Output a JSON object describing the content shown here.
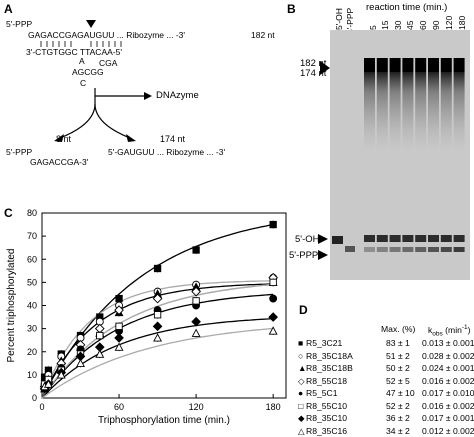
{
  "panels": {
    "A": "A",
    "B": "B",
    "C": "C",
    "D": "D"
  },
  "panelA": {
    "top_left_prefix": "5'-PPP",
    "top_strand": "GAGACCGAGAUGUU ... Ribozyme ... -3'",
    "top_length": "182 nt",
    "dz_strand": "3'-CTGTGGC  TTACAA-5'",
    "loop_a": "A",
    "loop_b": "CGA",
    "loop_c": "AGCGG",
    "loop_d": "C",
    "dnazyme": "DNAzyme",
    "frag1_len": "8 nt",
    "frag2_len": "174 nt",
    "frag1_a": "5'-PPP",
    "frag1_b": "GAGACCGA-3'",
    "frag2": "5'-GAUGUU ... Ribozyme ... -3'"
  },
  "panelB": {
    "lane_5oh": "5'-OH",
    "lane_5ppp": "5'-PPP",
    "reaction_time": "reaction time (min.)",
    "times": [
      "5",
      "15",
      "30",
      "45",
      "60",
      "90",
      "120",
      "180"
    ],
    "left_182": "182 nt",
    "left_174": "174 nt",
    "right_5oh": "5'-OH",
    "right_5ppp": "5'-PPP"
  },
  "chart_data": {
    "type": "scatter",
    "xlabel": "Triphosphorylation time (min.)",
    "ylabel": "Percent triphosphorylated",
    "xlim": [
      0,
      190
    ],
    "ylim": [
      0,
      80
    ],
    "xticks": [
      0,
      60,
      120,
      180
    ],
    "yticks": [
      0,
      10,
      20,
      30,
      40,
      50,
      60,
      70,
      80
    ],
    "series": [
      {
        "name": "R5_3C21",
        "marker": "square-filled",
        "x": [
          2,
          5,
          15,
          30,
          45,
          60,
          90,
          120,
          180
        ],
        "y": [
          9,
          12,
          19,
          27,
          35,
          43,
          56,
          64,
          75
        ]
      },
      {
        "name": "R8_35C18A",
        "marker": "circle-open",
        "x": [
          2,
          5,
          15,
          30,
          45,
          60,
          90,
          120,
          180
        ],
        "y": [
          6,
          10,
          18,
          26,
          33,
          40,
          46,
          49,
          52
        ]
      },
      {
        "name": "R8_35C18B",
        "marker": "triangle-filled",
        "x": [
          2,
          5,
          15,
          30,
          45,
          60,
          90,
          120,
          180
        ],
        "y": [
          4,
          8,
          16,
          22,
          28,
          37,
          45,
          48,
          50
        ]
      },
      {
        "name": "R8_55C18",
        "marker": "diamond-open",
        "x": [
          2,
          5,
          15,
          30,
          45,
          60,
          90,
          120,
          180
        ],
        "y": [
          5,
          7,
          15,
          23,
          30,
          38,
          43,
          46,
          52
        ]
      },
      {
        "name": "R5_5C1",
        "marker": "circle-filled",
        "x": [
          2,
          5,
          15,
          30,
          45,
          60,
          90,
          120,
          180
        ],
        "y": [
          4,
          7,
          13,
          21,
          27,
          29,
          38,
          40,
          43
        ]
      },
      {
        "name": "R8_55C10",
        "marker": "square-open",
        "x": [
          2,
          5,
          15,
          30,
          45,
          60,
          90,
          120,
          180
        ],
        "y": [
          6,
          8,
          12,
          19,
          27,
          31,
          36,
          42,
          50
        ]
      },
      {
        "name": "R8_35C10",
        "marker": "diamond-filled",
        "x": [
          2,
          5,
          15,
          30,
          45,
          60,
          90,
          120,
          180
        ],
        "y": [
          4,
          6,
          11,
          18,
          22,
          26,
          31,
          33,
          35
        ]
      },
      {
        "name": "R8_35C16",
        "marker": "triangle-open",
        "x": [
          2,
          5,
          15,
          30,
          45,
          60,
          90,
          120,
          180
        ],
        "y": [
          5,
          6,
          10,
          15,
          19,
          22,
          26,
          28,
          29
        ]
      }
    ]
  },
  "panelD": {
    "hdr_max": "Max. (%)",
    "hdr_kobs": "k",
    "hdr_kobs_sub": "obs",
    "hdr_kobs_unit": " (min",
    "hdr_kobs_sup": "-1",
    "hdr_kobs_end": ")",
    "rows": [
      {
        "symbol": "■",
        "name": "R5_3C21",
        "max": "83 ± 1",
        "kobs": "0.013 ± 0.001"
      },
      {
        "symbol": "○",
        "name": "R8_35C18A",
        "max": "51 ± 2",
        "kobs": "0.028 ± 0.002"
      },
      {
        "symbol": "▲",
        "name": "R8_35C18B",
        "max": "50 ± 2",
        "kobs": "0.024 ± 0.001"
      },
      {
        "symbol": "◇",
        "name": "R8_55C18",
        "max": "52 ± 5",
        "kobs": "0.016 ± 0.002"
      },
      {
        "symbol": "●",
        "name": "R5_5C1",
        "max": "47 ± 10",
        "kobs": "0.017 ± 0.010"
      },
      {
        "symbol": "□",
        "name": "R8_55C10",
        "max": "52 ± 2",
        "kobs": "0.016 ± 0.002"
      },
      {
        "symbol": "◆",
        "name": "R8_35C10",
        "max": "36 ± 2",
        "kobs": "0.017 ± 0.001"
      },
      {
        "symbol": "△",
        "name": "R8_35C16",
        "max": "34 ± 2",
        "kobs": "0.012 ± 0.002"
      }
    ]
  }
}
